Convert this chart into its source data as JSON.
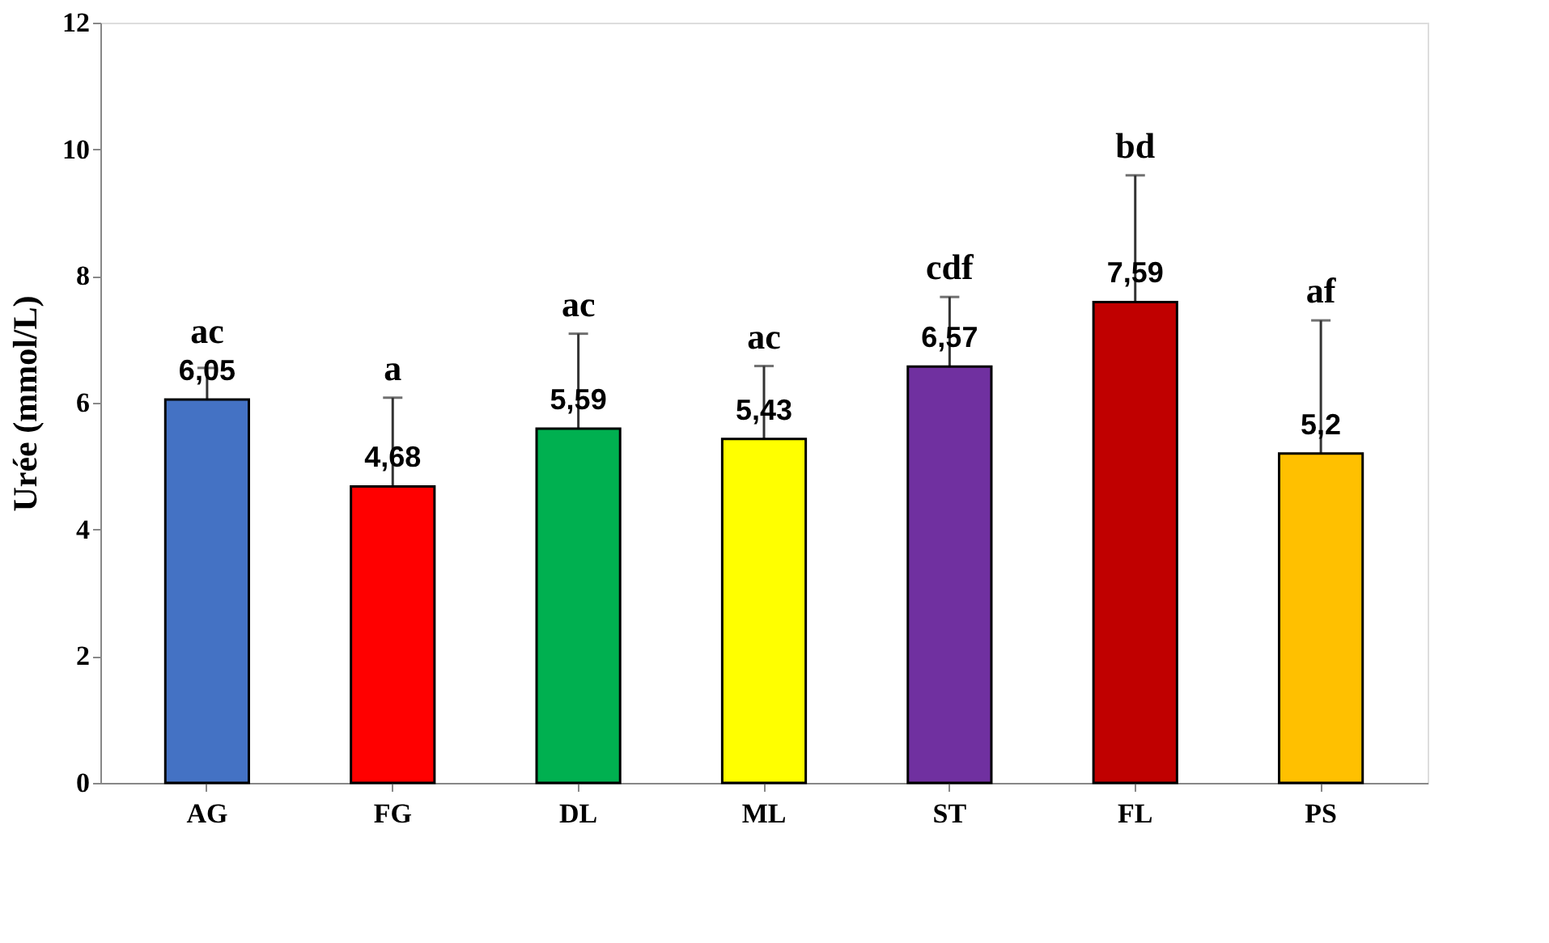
{
  "chart_data": {
    "type": "bar",
    "ylabel": "Urée  (mmol/L)",
    "categories": [
      "AG",
      "FG",
      "DL",
      "ML",
      "ST",
      "FL",
      "PS"
    ],
    "values": [
      6.05,
      4.68,
      5.59,
      5.43,
      6.57,
      7.59,
      5.2
    ],
    "colors": [
      "#4472c4",
      "#ff0000",
      "#00b050",
      "#ffff00",
      "#7030a0",
      "#c00000",
      "#ffc000"
    ],
    "errors": [
      0.5,
      1.4,
      1.5,
      1.15,
      1.1,
      2.0,
      2.1
    ],
    "value_labels": [
      "6,05",
      "4,68",
      "5,59",
      "5,43",
      "6,57",
      "7,59",
      "5,2"
    ],
    "annotations": [
      {
        "text": "ac",
        "x": "AG",
        "y": 6.55
      },
      {
        "text": "a",
        "x": "FG",
        "y": 6.08
      },
      {
        "text": "ac",
        "x": "DL",
        "y": 7.09
      },
      {
        "text": "ac",
        "x": "ML",
        "y": 6.58
      },
      {
        "text": "cdf",
        "x": "ST",
        "y": 7.67
      },
      {
        "text": "bd",
        "x": "FL",
        "y": 9.59
      },
      {
        "text": "af",
        "x": "PS",
        "y": 7.3
      }
    ],
    "ylim": [
      0,
      12
    ],
    "yticks": [
      0,
      2,
      4,
      6,
      8,
      10,
      12
    ],
    "grid": false,
    "legend": false
  }
}
